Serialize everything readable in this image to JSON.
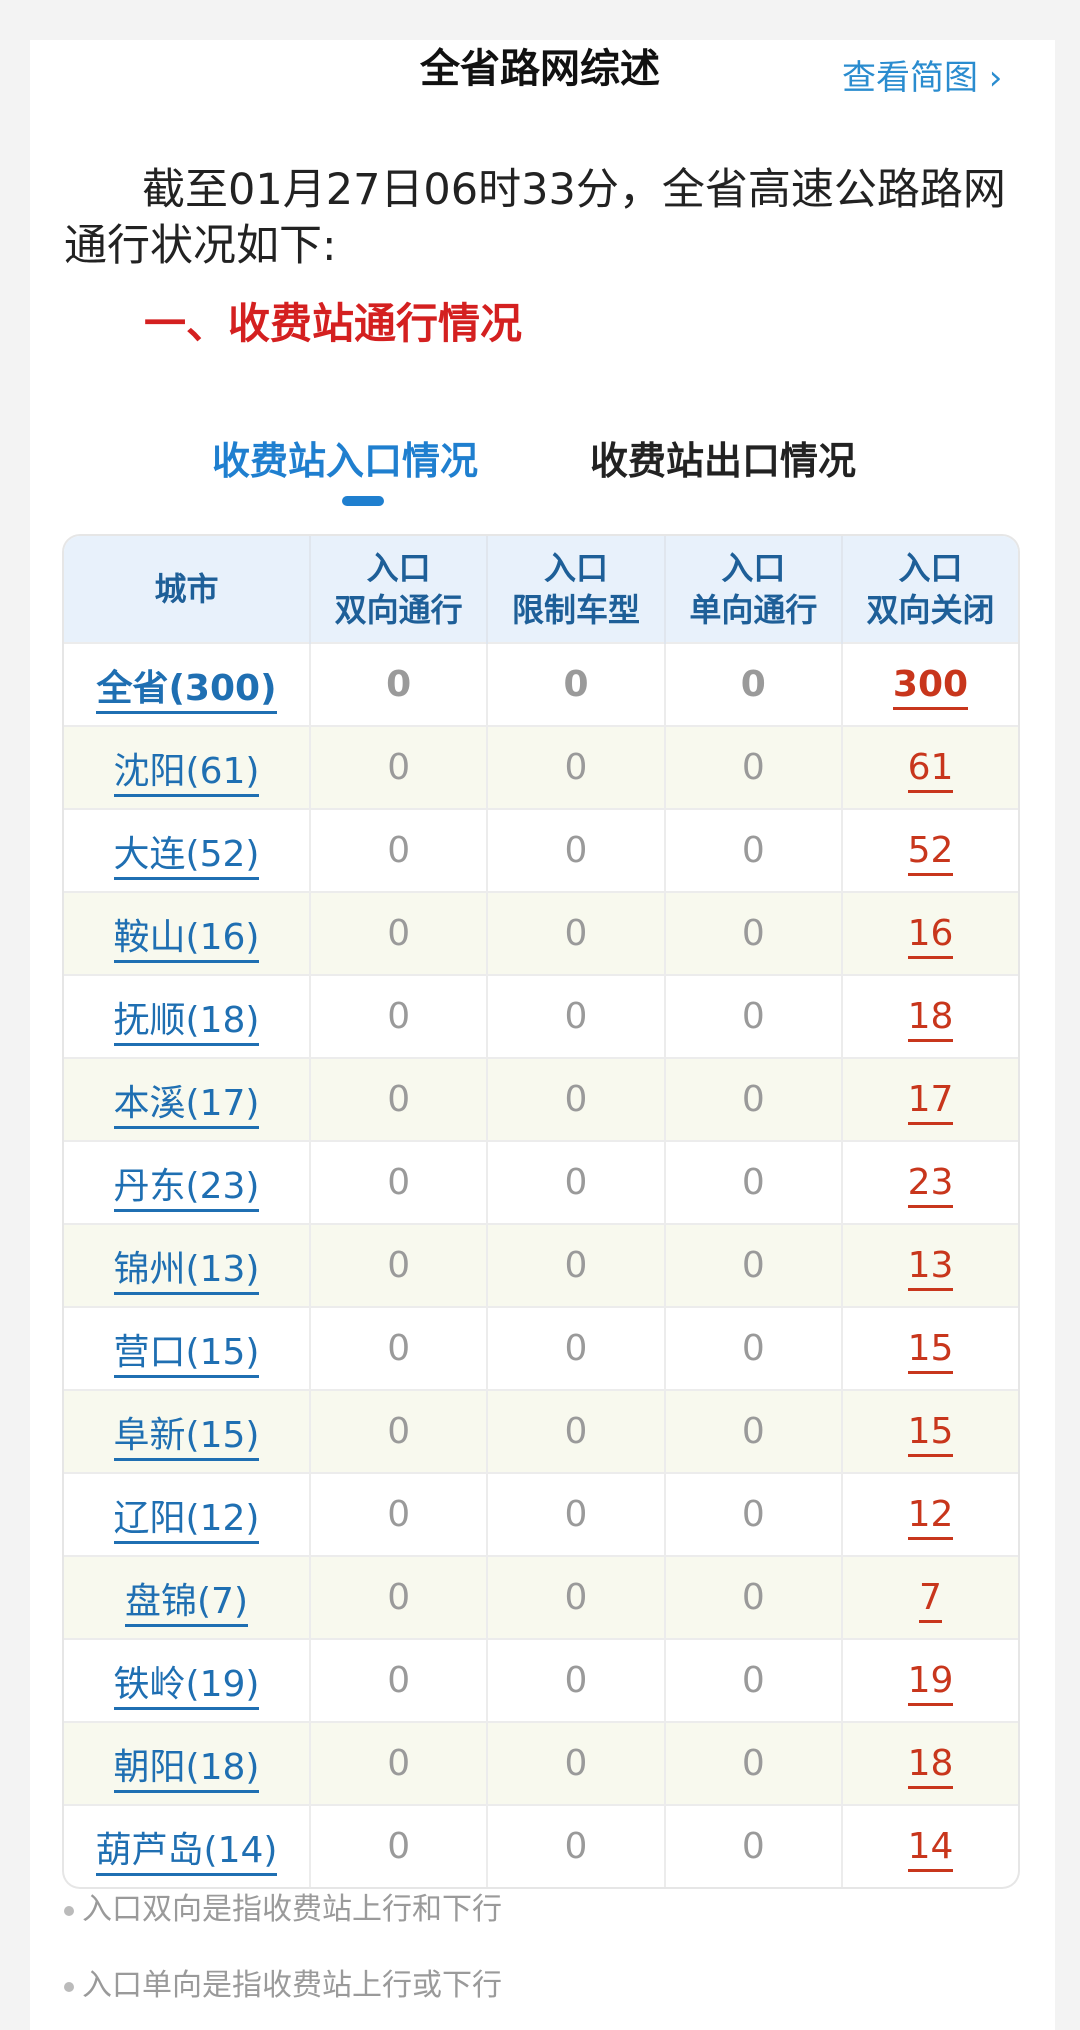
{
  "header": {
    "title": "全省路网综述",
    "view_map": "查看简图",
    "view_map_icon": "chevron-right-icon"
  },
  "intro": "截至01月27日06时33分，全省高速公路路网通行状况如下:",
  "section_title": "一、收费站通行情况",
  "tabs": [
    {
      "label": "收费站入口情况",
      "active": true
    },
    {
      "label": "收费站出口情况",
      "active": false
    }
  ],
  "table": {
    "headers": [
      [
        "城市",
        ""
      ],
      [
        "入口",
        "双向通行"
      ],
      [
        "入口",
        "限制车型"
      ],
      [
        "入口",
        "单向通行"
      ],
      [
        "入口",
        "双向关闭"
      ]
    ],
    "rows": [
      [
        "全省(300)",
        "0",
        "0",
        "0",
        "300"
      ],
      [
        "沈阳(61)",
        "0",
        "0",
        "0",
        "61"
      ],
      [
        "大连(52)",
        "0",
        "0",
        "0",
        "52"
      ],
      [
        "鞍山(16)",
        "0",
        "0",
        "0",
        "16"
      ],
      [
        "抚顺(18)",
        "0",
        "0",
        "0",
        "18"
      ],
      [
        "本溪(17)",
        "0",
        "0",
        "0",
        "17"
      ],
      [
        "丹东(23)",
        "0",
        "0",
        "0",
        "23"
      ],
      [
        "锦州(13)",
        "0",
        "0",
        "0",
        "13"
      ],
      [
        "营口(15)",
        "0",
        "0",
        "0",
        "15"
      ],
      [
        "阜新(15)",
        "0",
        "0",
        "0",
        "15"
      ],
      [
        "辽阳(12)",
        "0",
        "0",
        "0",
        "12"
      ],
      [
        "盘锦(7)",
        "0",
        "0",
        "0",
        "7"
      ],
      [
        "铁岭(19)",
        "0",
        "0",
        "0",
        "19"
      ],
      [
        "朝阳(18)",
        "0",
        "0",
        "0",
        "18"
      ],
      [
        "葫芦岛(14)",
        "0",
        "0",
        "0",
        "14"
      ]
    ]
  },
  "notes": [
    "入口双向是指收费站上行和下行",
    "入口单向是指收费站上行或下行"
  ],
  "colors": {
    "accent": "#1f7fcf",
    "closed": "#c8361c",
    "section": "#d42020"
  }
}
